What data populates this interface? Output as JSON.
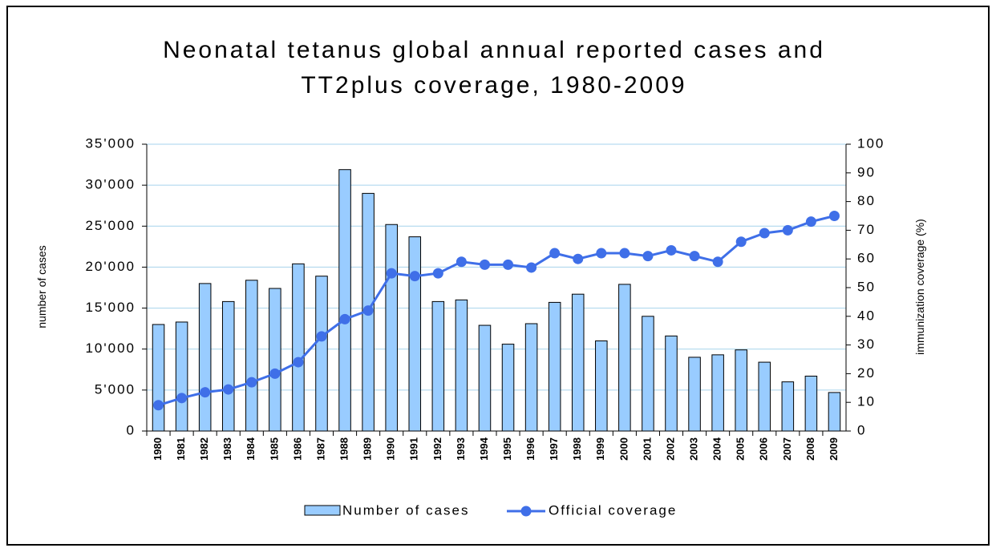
{
  "chart_data": {
    "type": "bar",
    "title": [
      "Neonatal tetanus global annual reported cases and",
      "TT2plus coverage, 1980-2009"
    ],
    "ylabel": "number of cases",
    "y2label": "immunization coverage (%)",
    "categories": [
      "1980",
      "1981",
      "1982",
      "1983",
      "1984",
      "1985",
      "1986",
      "1987",
      "1988",
      "1989",
      "1990",
      "1991",
      "1992",
      "1993",
      "1994",
      "1995",
      "1996",
      "1997",
      "1998",
      "1999",
      "2000",
      "2001",
      "2002",
      "2003",
      "2004",
      "2005",
      "2006",
      "2007",
      "2008",
      "2009"
    ],
    "series": [
      {
        "name": "Number of cases",
        "type": "bar",
        "color": "#99ccff",
        "values": [
          13000,
          13300,
          18000,
          15800,
          18400,
          17400,
          20400,
          18900,
          31900,
          29000,
          25200,
          23700,
          15800,
          16000,
          12900,
          10600,
          13100,
          15700,
          16700,
          11000,
          17900,
          14000,
          11600,
          9000,
          9300,
          9900,
          8400,
          6000,
          6700,
          4700
        ]
      },
      {
        "name": "Official coverage",
        "type": "line",
        "axis": "y2",
        "color": "#3f6fe8",
        "values": [
          9,
          11.5,
          13.5,
          14.5,
          17,
          20,
          24,
          33,
          39,
          42,
          55,
          54,
          55,
          59,
          58,
          58,
          57,
          62,
          60,
          62,
          62,
          61,
          63,
          61,
          59,
          66,
          69,
          70,
          73,
          75
        ]
      }
    ],
    "ylim": [
      0,
      35000
    ],
    "yticks": [
      0,
      {
        "value": 5000,
        "label": "5'000"
      },
      {
        "value": 10000,
        "label": "10'000"
      },
      {
        "value": 15000,
        "label": "15'000"
      },
      {
        "value": 20000,
        "label": "20'000"
      },
      {
        "value": 25000,
        "label": "25'000"
      },
      {
        "value": 30000,
        "label": "30'000"
      },
      {
        "value": 35000,
        "label": "35'000"
      }
    ],
    "y2lim": [
      0,
      100
    ],
    "y2ticks": [
      0,
      10,
      20,
      30,
      40,
      50,
      60,
      70,
      80,
      90,
      100
    ],
    "grid": true,
    "legend": "bottom"
  }
}
